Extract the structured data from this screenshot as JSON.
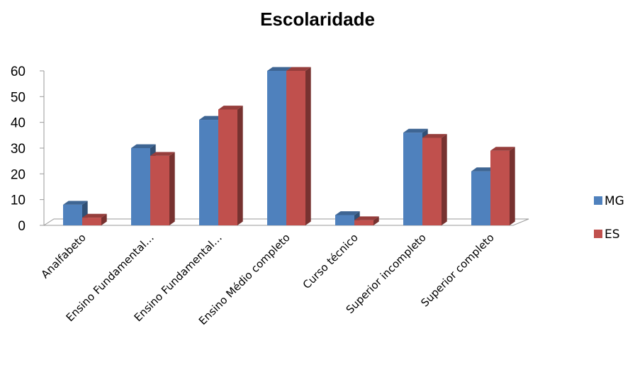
{
  "chart_data": {
    "type": "bar",
    "title": "Escolaridade",
    "categories": [
      "Analfabeto",
      "Ensino Fundamental…",
      "Ensino Fundamental…",
      "Ensino Médio completo",
      "Curso técnico",
      "Superior incompleto",
      "Superior completo"
    ],
    "series": [
      {
        "name": "MG",
        "color": "#4F81BD",
        "values": [
          8,
          30,
          41,
          60,
          4,
          36,
          21
        ]
      },
      {
        "name": "ES",
        "color": "#C0504D",
        "values": [
          3,
          27,
          45,
          60,
          2,
          34,
          29
        ]
      }
    ],
    "ylim": [
      0,
      60
    ],
    "yticks": [
      0,
      10,
      20,
      30,
      40,
      50,
      60
    ],
    "xlabel": "",
    "ylabel": "",
    "legend": "right",
    "grid": false,
    "style": "3d-clustered-column"
  }
}
